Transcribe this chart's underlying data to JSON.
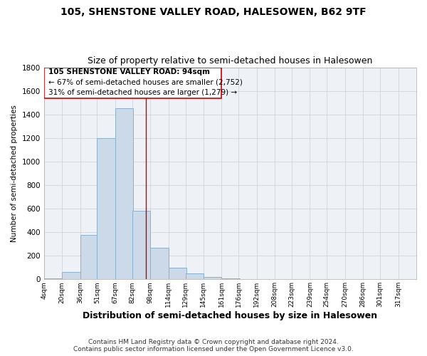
{
  "title_line1": "105, SHENSTONE VALLEY ROAD, HALESOWEN, B62 9TF",
  "title_line2": "Size of property relative to semi-detached houses in Halesowen",
  "xlabel": "Distribution of semi-detached houses by size in Halesowen",
  "ylabel": "Number of semi-detached properties",
  "footer_line1": "Contains HM Land Registry data © Crown copyright and database right 2024.",
  "footer_line2": "Contains public sector information licensed under the Open Government Licence v3.0.",
  "annotation_line1": "105 SHENSTONE VALLEY ROAD: 94sqm",
  "annotation_line2": "← 67% of semi-detached houses are smaller (2,752)",
  "annotation_line3": "31% of semi-detached houses are larger (1,279) →",
  "bar_color": "#ccd9e8",
  "bar_edge_color": "#8ab0cc",
  "grid_color": "#c8d0d8",
  "axes_bg_color": "#eef2f7",
  "background_color": "#ffffff",
  "property_line_color": "#cc0000",
  "property_line_x": 94,
  "annotation_box_color": "#cc0000",
  "categories": [
    "4sqm",
    "20sqm",
    "36sqm",
    "51sqm",
    "67sqm",
    "82sqm",
    "98sqm",
    "114sqm",
    "129sqm",
    "145sqm",
    "161sqm",
    "176sqm",
    "192sqm",
    "208sqm",
    "223sqm",
    "239sqm",
    "254sqm",
    "270sqm",
    "286sqm",
    "301sqm",
    "317sqm"
  ],
  "bin_edges": [
    4,
    20,
    36,
    51,
    67,
    82,
    98,
    114,
    129,
    145,
    161,
    176,
    192,
    208,
    223,
    239,
    254,
    270,
    286,
    301,
    317
  ],
  "bin_width": 16,
  "values": [
    10,
    60,
    375,
    1200,
    1455,
    580,
    270,
    100,
    50,
    20,
    10,
    0,
    0,
    0,
    0,
    0,
    0,
    0,
    0,
    0,
    0
  ],
  "ylim": [
    0,
    1800
  ],
  "yticks": [
    0,
    200,
    400,
    600,
    800,
    1000,
    1200,
    1400,
    1600,
    1800
  ]
}
